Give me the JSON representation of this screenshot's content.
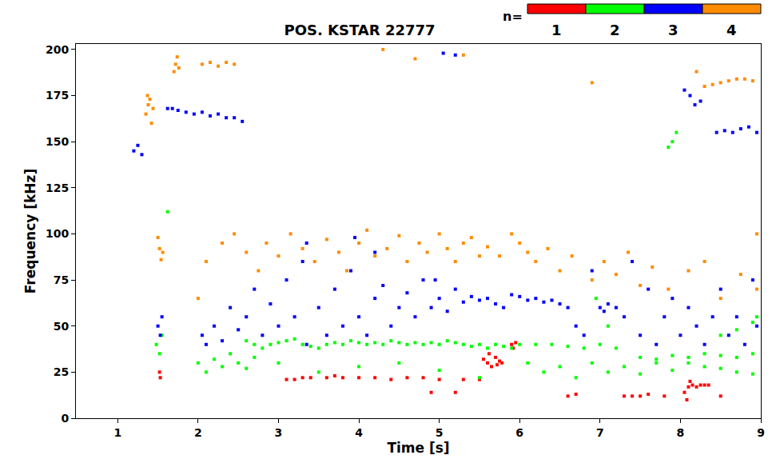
{
  "chart_data": {
    "type": "scatter",
    "title": "POS. KSTAR 22777",
    "x_label": "Time [s]",
    "y_label": "Frequency [kHz]",
    "xlim": [
      0.48,
      9
    ],
    "ylim": [
      0,
      203
    ],
    "xticks": [
      1,
      2,
      3,
      4,
      5,
      6,
      7,
      8,
      9
    ],
    "yticks": [
      0,
      25,
      50,
      75,
      100,
      125,
      150,
      175,
      200
    ],
    "legend": "top right",
    "legend_title": "n=",
    "marker": "square",
    "series": [
      {
        "name": "1",
        "color": "#ff0000",
        "x": [
          1.52,
          1.53,
          3.1,
          3.2,
          3.3,
          3.4,
          3.6,
          3.7,
          3.8,
          4.0,
          4.2,
          4.4,
          4.6,
          4.8,
          5.0,
          5.3,
          5.5,
          5.55,
          5.6,
          5.62,
          5.65,
          5.7,
          5.72,
          5.75,
          5.78,
          5.9,
          5.92,
          5.95,
          4.9,
          5.2,
          6.6,
          6.7,
          7.3,
          7.4,
          7.5,
          7.6,
          7.8,
          8.05,
          8.08,
          8.1,
          8.12,
          8.15,
          8.2,
          8.25,
          8.3,
          8.35,
          8.5
        ],
        "values": [
          25,
          22,
          21,
          21,
          22,
          22,
          22,
          23,
          22,
          22,
          22,
          21,
          22,
          22,
          21,
          21,
          21,
          32,
          30,
          35,
          28,
          33,
          29,
          31,
          30,
          40,
          38,
          41,
          14,
          14,
          12,
          13,
          12,
          12,
          12,
          13,
          12,
          14,
          10,
          17,
          20,
          18,
          17,
          18,
          18,
          18,
          12
        ]
      },
      {
        "name": "2",
        "color": "#00ff00",
        "x": [
          1.48,
          1.52,
          1.55,
          1.62,
          2.0,
          2.1,
          2.2,
          2.3,
          2.4,
          2.5,
          2.6,
          2.7,
          2.6,
          2.7,
          2.8,
          2.9,
          3.0,
          3.1,
          3.2,
          3.3,
          3.4,
          3.5,
          3.6,
          3.7,
          3.8,
          3.9,
          4.0,
          4.1,
          4.2,
          4.3,
          4.4,
          4.5,
          4.6,
          4.7,
          4.8,
          4.9,
          5.0,
          5.1,
          5.2,
          5.3,
          5.4,
          5.5,
          5.6,
          5.7,
          5.8,
          5.9,
          6.0,
          6.2,
          6.4,
          6.6,
          6.8,
          7.0,
          7.2,
          3.0,
          3.5,
          4.0,
          4.5,
          5.0,
          5.5,
          6.1,
          6.3,
          6.5,
          6.7,
          6.9,
          7.1,
          7.3,
          7.5,
          7.7,
          7.9,
          8.1,
          8.3,
          8.5,
          8.7,
          8.9,
          7.5,
          7.7,
          7.9,
          8.1,
          8.3,
          8.5,
          8.7,
          8.9,
          8.5,
          8.7,
          8.9,
          8.95,
          7.1,
          6.95,
          7.9,
          7.95,
          7.85
        ],
        "values": [
          40,
          35,
          45,
          112,
          30,
          25,
          32,
          28,
          35,
          30,
          27,
          33,
          42,
          40,
          38,
          40,
          41,
          42,
          43,
          40,
          39,
          38,
          40,
          41,
          40,
          42,
          41,
          40,
          41,
          40,
          42,
          41,
          40,
          41,
          40,
          41,
          40,
          42,
          41,
          40,
          39,
          40,
          38,
          40,
          39,
          38,
          40,
          40,
          40,
          39,
          38,
          40,
          38,
          30,
          25,
          28,
          30,
          26,
          22,
          30,
          25,
          28,
          22,
          30,
          25,
          28,
          24,
          30,
          26,
          30,
          28,
          27,
          25,
          24,
          33,
          32,
          34,
          33,
          35,
          34,
          33,
          35,
          45,
          48,
          52,
          55,
          50,
          65,
          150,
          155,
          147
        ]
      },
      {
        "name": "3",
        "color": "#0000ff",
        "x": [
          1.2,
          1.25,
          1.3,
          1.62,
          1.68,
          1.75,
          1.85,
          1.95,
          2.05,
          2.15,
          2.25,
          2.35,
          2.45,
          2.55,
          8.05,
          8.12,
          8.18,
          8.25,
          8.45,
          8.55,
          8.65,
          8.75,
          8.85,
          8.95,
          5.05,
          5.2,
          1.5,
          1.53,
          1.55,
          2.05,
          2.1,
          2.2,
          2.3,
          2.4,
          2.5,
          2.6,
          2.7,
          2.8,
          2.9,
          3.0,
          3.1,
          3.2,
          3.3,
          3.35,
          3.5,
          3.6,
          3.7,
          3.8,
          3.9,
          4.0,
          4.1,
          4.2,
          4.3,
          4.4,
          4.5,
          4.6,
          4.7,
          4.8,
          4.9,
          5.0,
          5.1,
          5.2,
          5.3,
          5.4,
          5.5,
          5.6,
          5.7,
          5.8,
          5.9,
          6.0,
          6.1,
          6.2,
          6.3,
          6.4,
          6.5,
          6.6,
          6.7,
          6.8,
          6.9,
          7.0,
          7.05,
          7.1,
          7.2,
          7.3,
          7.4,
          7.5,
          7.6,
          7.7,
          7.8,
          7.9,
          8.0,
          8.1,
          8.2,
          8.3,
          8.4,
          8.5,
          8.6,
          8.7,
          8.8,
          8.9,
          8.95,
          3.35,
          3.95,
          4.2,
          4.95
        ],
        "values": [
          145,
          148,
          143,
          168,
          168,
          167,
          166,
          165,
          166,
          164,
          165,
          163,
          163,
          161,
          178,
          175,
          170,
          172,
          155,
          156,
          155,
          157,
          158,
          155,
          198,
          197,
          50,
          45,
          55,
          45,
          40,
          50,
          42,
          60,
          48,
          55,
          70,
          45,
          62,
          50,
          75,
          55,
          85,
          40,
          60,
          45,
          70,
          50,
          80,
          55,
          45,
          65,
          72,
          50,
          60,
          68,
          55,
          75,
          60,
          65,
          58,
          70,
          63,
          66,
          64,
          65,
          62,
          60,
          67,
          66,
          64,
          65,
          63,
          64,
          62,
          60,
          50,
          45,
          80,
          60,
          58,
          62,
          60,
          55,
          85,
          45,
          70,
          40,
          55,
          65,
          45,
          60,
          50,
          40,
          55,
          70,
          45,
          55,
          40,
          75,
          50,
          95,
          98,
          90,
          75
        ]
      },
      {
        "name": "4",
        "color": "#ff8c00",
        "x": [
          1.35,
          1.38,
          1.4,
          1.42,
          1.44,
          1.37,
          1.7,
          1.72,
          1.74,
          1.76,
          2.05,
          2.15,
          2.25,
          2.35,
          2.45,
          1.5,
          1.52,
          1.54,
          1.56,
          2.0,
          2.1,
          2.3,
          2.45,
          2.6,
          2.75,
          2.85,
          3.0,
          3.15,
          3.3,
          3.45,
          3.6,
          3.75,
          3.85,
          4.0,
          4.1,
          4.2,
          4.35,
          4.5,
          4.6,
          4.75,
          4.85,
          5.0,
          5.1,
          5.2,
          5.3,
          5.4,
          5.5,
          5.6,
          5.75,
          5.9,
          6.0,
          6.1,
          6.2,
          6.35,
          6.5,
          6.65,
          6.9,
          7.05,
          7.2,
          7.35,
          7.5,
          7.65,
          7.85,
          8.1,
          8.3,
          8.5,
          8.75,
          8.95,
          8.95,
          8.2,
          8.3,
          8.4,
          8.5,
          8.6,
          8.7,
          8.8,
          8.9,
          4.3,
          5.3,
          4.7,
          6.9
        ],
        "values": [
          165,
          170,
          173,
          160,
          168,
          175,
          188,
          192,
          196,
          190,
          192,
          193,
          191,
          193,
          192,
          98,
          92,
          86,
          90,
          65,
          85,
          95,
          100,
          90,
          80,
          95,
          88,
          100,
          92,
          85,
          97,
          90,
          80,
          95,
          102,
          88,
          92,
          99,
          85,
          95,
          90,
          100,
          92,
          85,
          95,
          98,
          88,
          93,
          88,
          100,
          95,
          90,
          85,
          92,
          80,
          88,
          75,
          85,
          78,
          90,
          72,
          82,
          70,
          80,
          85,
          65,
          78,
          100,
          70,
          188,
          180,
          181,
          182,
          183,
          184,
          184,
          183,
          200,
          197,
          195,
          182
        ]
      }
    ]
  }
}
